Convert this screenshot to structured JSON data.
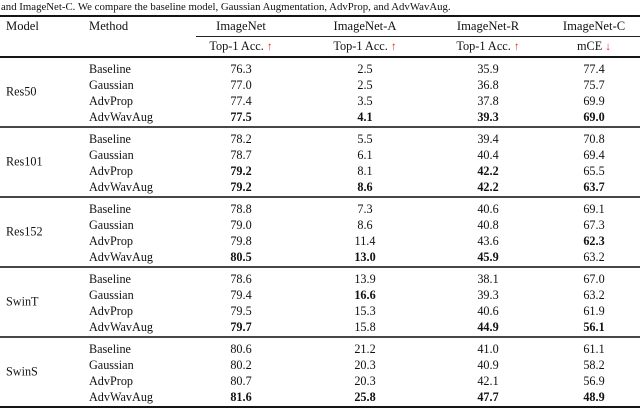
{
  "caption": "and ImageNet-C. We compare the baseline model, Gaussian Augmentation, AdvProp, and AdvWavAug.",
  "arrow_color": "#e8332a",
  "table": {
    "header": {
      "model": "Model",
      "method": "Method",
      "datasets": [
        "ImageNet",
        "ImageNet-A",
        "ImageNet-R",
        "ImageNet-C"
      ],
      "metrics": [
        {
          "label": "Top-1 Acc.",
          "arrow": "↑"
        },
        {
          "label": "Top-1 Acc.",
          "arrow": "↑"
        },
        {
          "label": "Top-1 Acc.",
          "arrow": "↑"
        },
        {
          "label": "mCE",
          "arrow": "↓"
        }
      ]
    },
    "groups": [
      {
        "model": "Res50",
        "rows": [
          {
            "method": "Baseline",
            "values": [
              "76.3",
              "2.5",
              "35.9",
              "77.4"
            ],
            "bold": [
              false,
              false,
              false,
              false
            ]
          },
          {
            "method": "Gaussian",
            "values": [
              "77.0",
              "2.5",
              "36.8",
              "75.7"
            ],
            "bold": [
              false,
              false,
              false,
              false
            ]
          },
          {
            "method": "AdvProp",
            "values": [
              "77.4",
              "3.5",
              "37.8",
              "69.9"
            ],
            "bold": [
              false,
              false,
              false,
              false
            ]
          },
          {
            "method": "AdvWavAug",
            "values": [
              "77.5",
              "4.1",
              "39.3",
              "69.0"
            ],
            "bold": [
              true,
              true,
              true,
              true
            ]
          }
        ]
      },
      {
        "model": "Res101",
        "rows": [
          {
            "method": "Baseline",
            "values": [
              "78.2",
              "5.5",
              "39.4",
              "70.8"
            ],
            "bold": [
              false,
              false,
              false,
              false
            ]
          },
          {
            "method": "Gaussian",
            "values": [
              "78.7",
              "6.1",
              "40.4",
              "69.4"
            ],
            "bold": [
              false,
              false,
              false,
              false
            ]
          },
          {
            "method": "AdvProp",
            "values": [
              "79.2",
              "8.1",
              "42.2",
              "65.5"
            ],
            "bold": [
              true,
              false,
              true,
              false
            ]
          },
          {
            "method": "AdvWavAug",
            "values": [
              "79.2",
              "8.6",
              "42.2",
              "63.7"
            ],
            "bold": [
              true,
              true,
              true,
              true
            ]
          }
        ]
      },
      {
        "model": "Res152",
        "rows": [
          {
            "method": "Baseline",
            "values": [
              "78.8",
              "7.3",
              "40.6",
              "69.1"
            ],
            "bold": [
              false,
              false,
              false,
              false
            ]
          },
          {
            "method": "Gaussian",
            "values": [
              "79.0",
              "8.6",
              "40.8",
              "67.3"
            ],
            "bold": [
              false,
              false,
              false,
              false
            ]
          },
          {
            "method": "AdvProp",
            "values": [
              "79.8",
              "11.4",
              "43.6",
              "62.3"
            ],
            "bold": [
              false,
              false,
              false,
              true
            ]
          },
          {
            "method": "AdvWavAug",
            "values": [
              "80.5",
              "13.0",
              "45.9",
              "63.2"
            ],
            "bold": [
              true,
              true,
              true,
              false
            ]
          }
        ]
      },
      {
        "model": "SwinT",
        "rows": [
          {
            "method": "Baseline",
            "values": [
              "78.6",
              "13.9",
              "38.1",
              "67.0"
            ],
            "bold": [
              false,
              false,
              false,
              false
            ]
          },
          {
            "method": "Gaussian",
            "values": [
              "79.4",
              "16.6",
              "39.3",
              "63.2"
            ],
            "bold": [
              false,
              true,
              false,
              false
            ]
          },
          {
            "method": "AdvProp",
            "values": [
              "79.5",
              "15.3",
              "40.6",
              "61.9"
            ],
            "bold": [
              false,
              false,
              false,
              false
            ]
          },
          {
            "method": "AdvWavAug",
            "values": [
              "79.7",
              "15.8",
              "44.9",
              "56.1"
            ],
            "bold": [
              true,
              false,
              true,
              true
            ]
          }
        ]
      },
      {
        "model": "SwinS",
        "rows": [
          {
            "method": "Baseline",
            "values": [
              "80.6",
              "21.2",
              "41.0",
              "61.1"
            ],
            "bold": [
              false,
              false,
              false,
              false
            ]
          },
          {
            "method": "Gaussian",
            "values": [
              "80.2",
              "20.3",
              "40.9",
              "58.2"
            ],
            "bold": [
              false,
              false,
              false,
              false
            ]
          },
          {
            "method": "AdvProp",
            "values": [
              "80.7",
              "20.3",
              "42.1",
              "56.9"
            ],
            "bold": [
              false,
              false,
              false,
              false
            ]
          },
          {
            "method": "AdvWavAug",
            "values": [
              "81.6",
              "25.8",
              "47.7",
              "48.9"
            ],
            "bold": [
              true,
              true,
              true,
              true
            ]
          }
        ]
      }
    ]
  }
}
